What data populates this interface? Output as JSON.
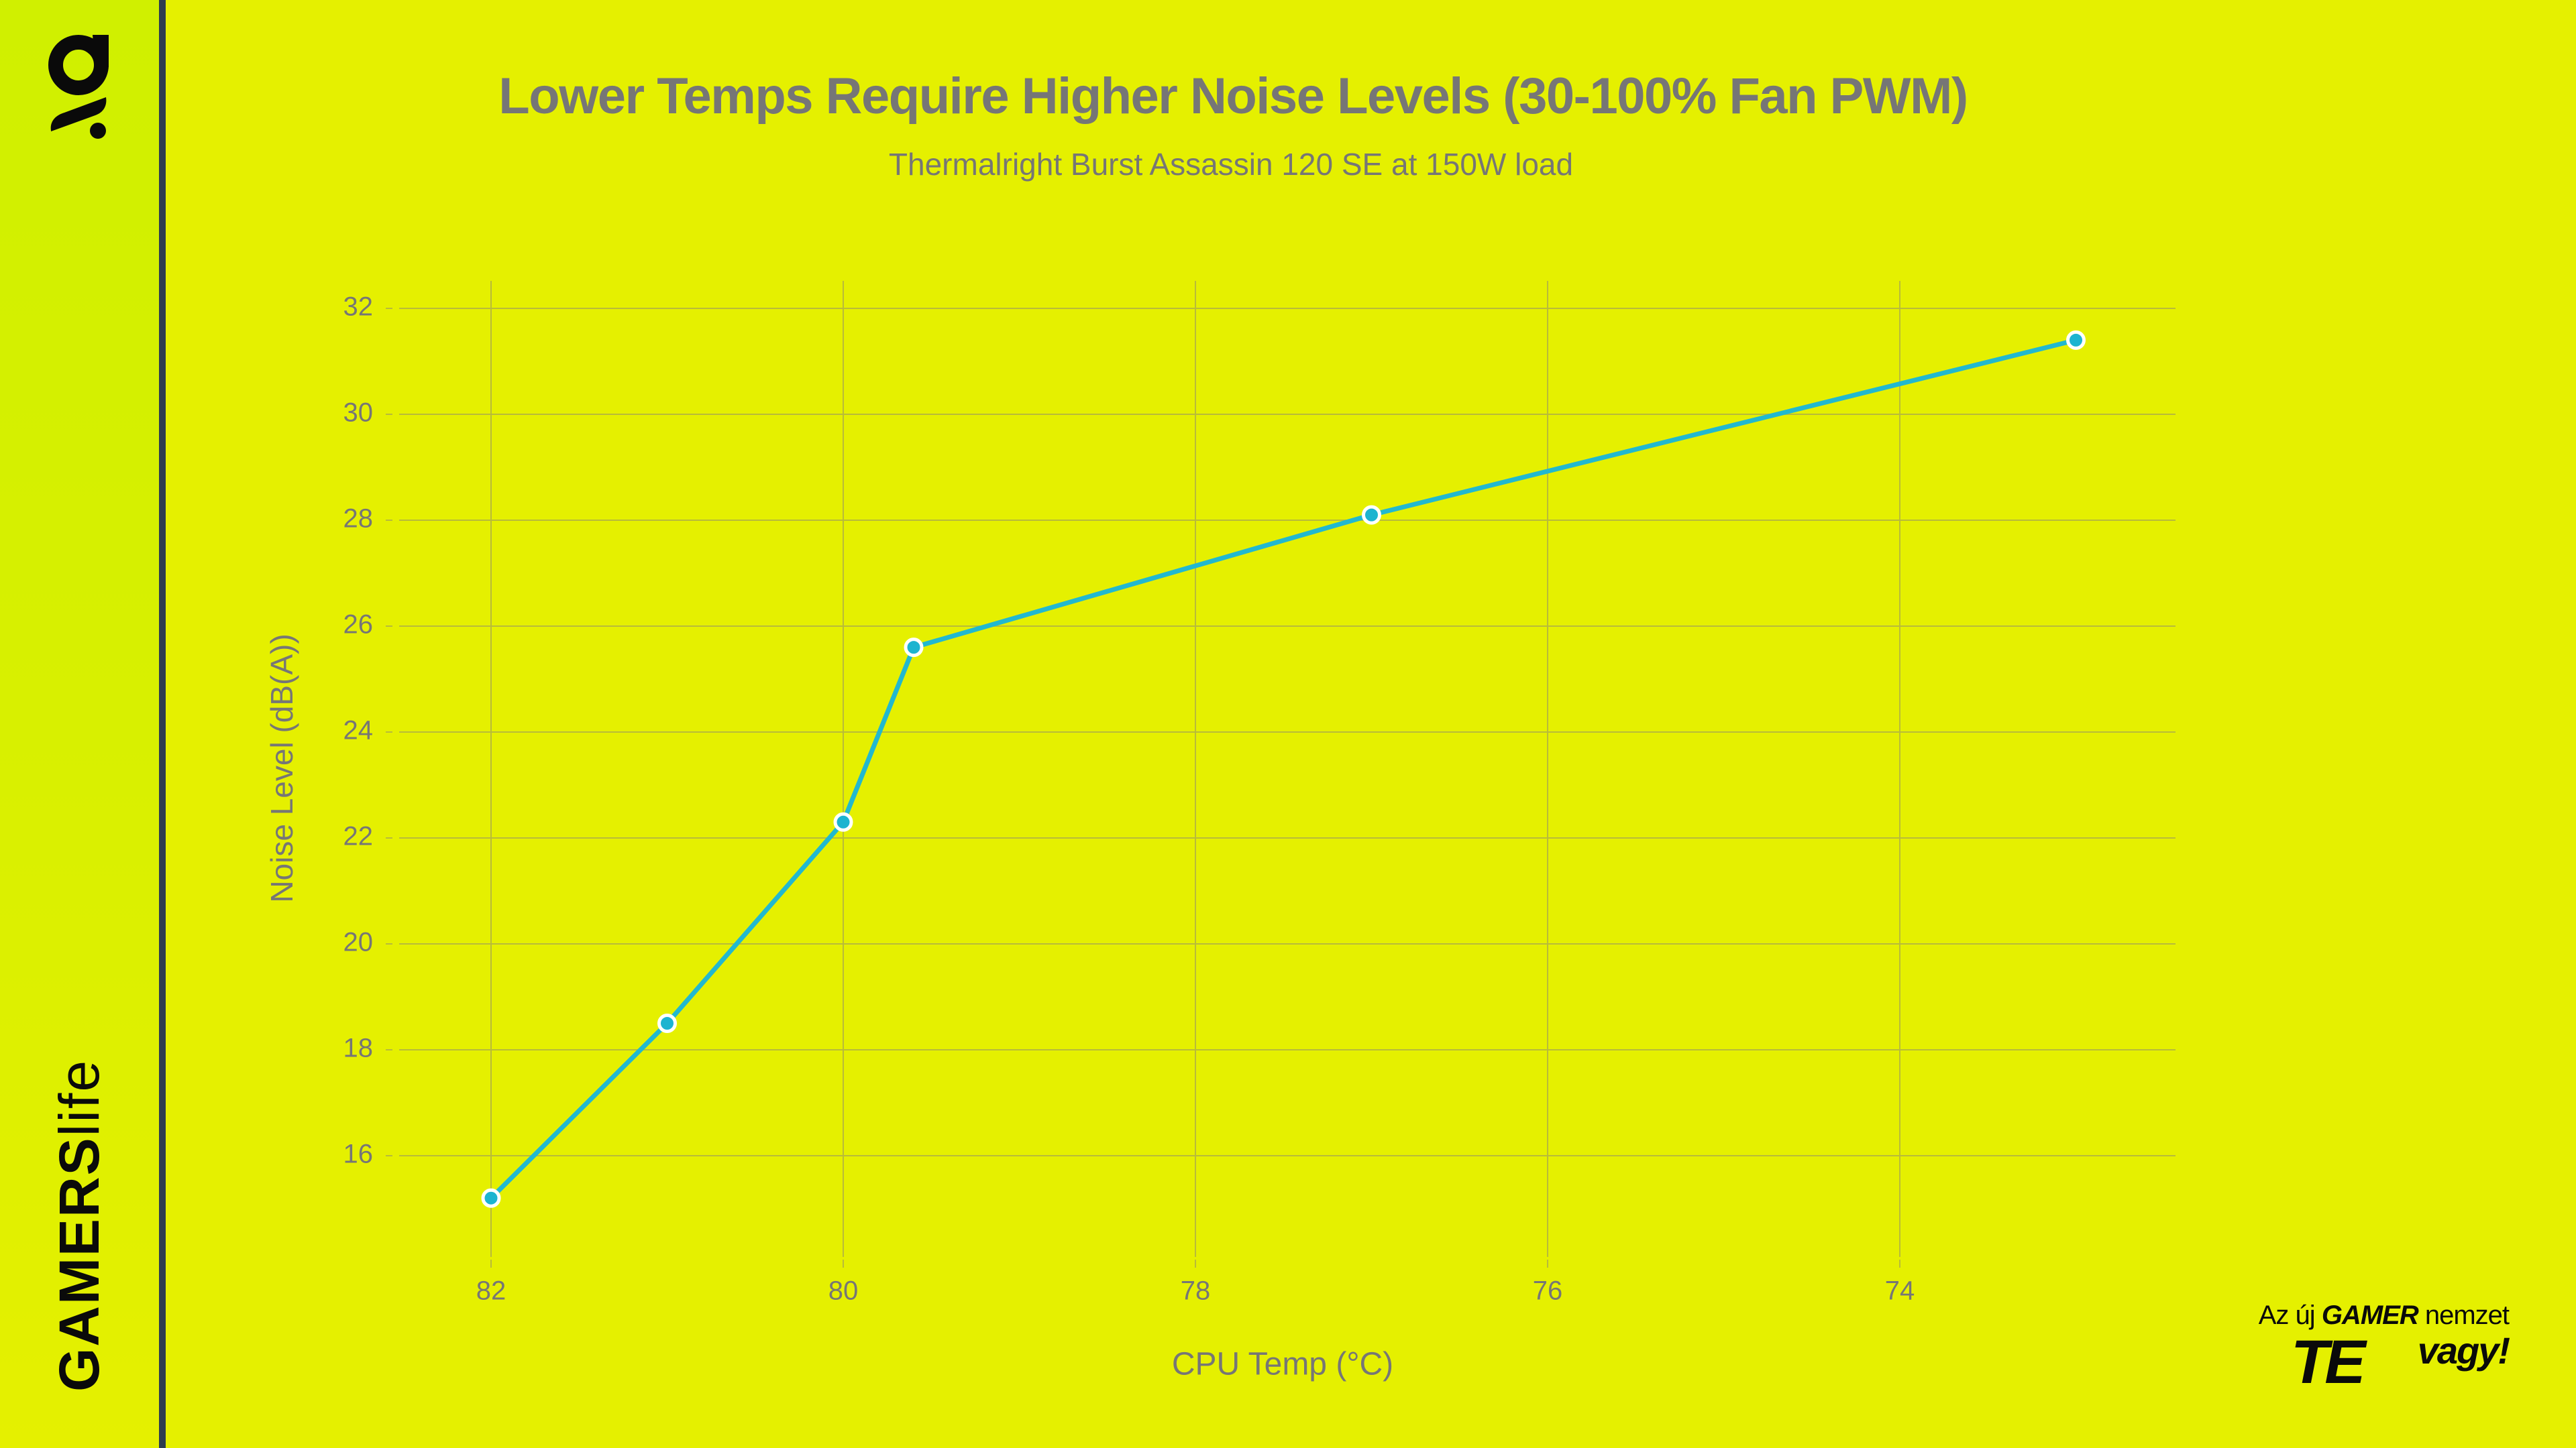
{
  "brand": {
    "logo_icon": "gamerslife-g-logo-icon",
    "name_strong": "GAMERS",
    "name_light": "life",
    "slogan": {
      "line1_prefix": "Az új",
      "line1_highlight": "GAMER",
      "line1_suffix": "nemzet",
      "te": "TE",
      "vagy": "vagy!"
    }
  },
  "colors": {
    "background": "#e5f000",
    "sidebar_top": "#d0f000",
    "sidebar_border": "#2e3d4f",
    "line": "#22b8cf",
    "marker_fill": "#1cb4d0",
    "marker_stroke": "#ffffff",
    "text": "#767676",
    "grid": "#b8bb3a"
  },
  "chart_data": {
    "type": "line",
    "title": "Lower Temps Require Higher Noise Levels (30-100% Fan PWM)",
    "subtitle": "Thermalright Burst Assassin 120 SE at 150W load",
    "xlabel": "CPU Temp (°C)",
    "ylabel": "Noise Level (dB(A))",
    "x_axis_reversed": true,
    "xlim": [
      82.6,
      72.4
    ],
    "ylim": [
      14.5,
      32.5
    ],
    "x_ticks": [
      82,
      80,
      78,
      76,
      74
    ],
    "y_ticks": [
      16,
      18,
      20,
      22,
      24,
      26,
      28,
      30,
      32
    ],
    "grid": true,
    "legend": null,
    "series": [
      {
        "name": "Thermalright Burst Assassin 120 SE",
        "x": [
          82,
          81,
          80,
          79.6,
          77,
          73
        ],
        "y": [
          15.2,
          18.5,
          22.3,
          25.6,
          28.1,
          31.4
        ]
      }
    ]
  }
}
